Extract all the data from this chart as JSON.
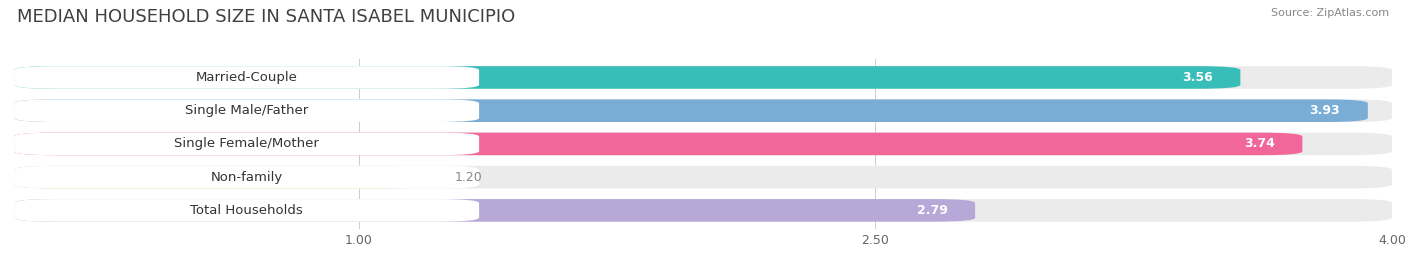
{
  "title": "MEDIAN HOUSEHOLD SIZE IN SANTA ISABEL MUNICIPIO",
  "source": "Source: ZipAtlas.com",
  "categories": [
    "Married-Couple",
    "Single Male/Father",
    "Single Female/Mother",
    "Non-family",
    "Total Households"
  ],
  "values": [
    3.56,
    3.93,
    3.74,
    1.2,
    2.79
  ],
  "bar_colors": [
    "#39bdb8",
    "#7aadd6",
    "#f2679a",
    "#f5c9a0",
    "#b8a8d8"
  ],
  "bg_colors": [
    "#ebebeb",
    "#ebebeb",
    "#ebebeb",
    "#ebebeb",
    "#ebebeb"
  ],
  "xlim": [
    0,
    4.0
  ],
  "xstart": 0.0,
  "xticks": [
    1.0,
    2.5,
    4.0
  ],
  "xtick_labels": [
    "1.00",
    "2.50",
    "4.00"
  ],
  "title_fontsize": 13,
  "label_fontsize": 9.5,
  "value_fontsize": 9,
  "bar_height": 0.68,
  "figsize": [
    14.06,
    2.69
  ],
  "dpi": 100,
  "background_color": "#ffffff",
  "value_inside_threshold": 1.5
}
